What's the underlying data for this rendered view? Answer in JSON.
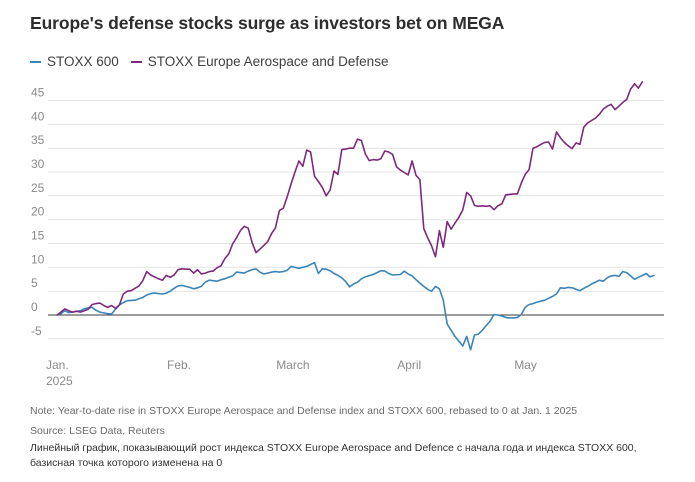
{
  "title": "Europe's defense stocks surge as investors bet on MEGA",
  "note": "Note: Year-to-date rise in STOXX Europe Aerospace and Defense index and STOXX 600, rebased to 0 at Jan. 1 2025",
  "source": "Source: LSEG Data, Reuters",
  "caption": "Линейный график, показывающий рост индекса STOXX Europe Aerospace and Defence с начала года и индекса STOXX 600, базисная точка которого изменена на 0",
  "colors": {
    "stoxx600": "#3a85b8",
    "aero_defense": "#7d2a7c",
    "grid": "#e4e4e4",
    "zero_line": "#3a3a3a",
    "tick_text": "#8a8a8a"
  },
  "chart_data": {
    "type": "line",
    "title": "Europe's defense stocks surge as investors bet on MEGA",
    "xlabel": "",
    "ylabel": "",
    "x_ticks": [
      {
        "label": "Jan.",
        "sub": "2025",
        "day": 1
      },
      {
        "label": "Feb.",
        "sub": "",
        "day": 32
      },
      {
        "label": "March",
        "sub": "",
        "day": 60
      },
      {
        "label": "April",
        "sub": "",
        "day": 91
      },
      {
        "label": "May",
        "sub": "",
        "day": 121
      }
    ],
    "y_ticks": [
      45,
      40,
      35,
      30,
      25,
      20,
      15,
      10,
      5,
      0,
      -5
    ],
    "ylim": [
      -8,
      49
    ],
    "xlim": [
      1,
      152
    ],
    "grid": true,
    "legend_position": "top-left",
    "series": [
      {
        "name": "STOXX 600",
        "key": "stoxx600",
        "points": [
          [
            1,
            0
          ],
          [
            2,
            0.3
          ],
          [
            3,
            0.9
          ],
          [
            4,
            0.5
          ],
          [
            5,
            0.6
          ],
          [
            7,
            0.9
          ],
          [
            8,
            1.3
          ],
          [
            9,
            1.5
          ],
          [
            10,
            1.6
          ],
          [
            11,
            1.0
          ],
          [
            12,
            0.6
          ],
          [
            14,
            0.3
          ],
          [
            15,
            0.2
          ],
          [
            16,
            1.2
          ],
          [
            17,
            2.1
          ],
          [
            18,
            2.6
          ],
          [
            19,
            3.0
          ],
          [
            21,
            3.1
          ],
          [
            22,
            3.4
          ],
          [
            23,
            3.7
          ],
          [
            24,
            4.2
          ],
          [
            25,
            4.5
          ],
          [
            26,
            4.6
          ],
          [
            28,
            4.4
          ],
          [
            29,
            4.6
          ],
          [
            30,
            5.0
          ],
          [
            31,
            5.6
          ],
          [
            32,
            6.1
          ],
          [
            33,
            6.2
          ],
          [
            35,
            5.8
          ],
          [
            36,
            5.5
          ],
          [
            37,
            5.7
          ],
          [
            38,
            6.0
          ],
          [
            39,
            6.9
          ],
          [
            40,
            7.3
          ],
          [
            42,
            7.1
          ],
          [
            43,
            7.4
          ],
          [
            44,
            7.6
          ],
          [
            45,
            7.9
          ],
          [
            46,
            8.2
          ],
          [
            47,
            9.0
          ],
          [
            49,
            8.8
          ],
          [
            50,
            9.2
          ],
          [
            51,
            9.5
          ],
          [
            52,
            9.7
          ],
          [
            53,
            9.0
          ],
          [
            54,
            8.6
          ],
          [
            56,
            9.0
          ],
          [
            57,
            9.1
          ],
          [
            58,
            9.0
          ],
          [
            59,
            9.1
          ],
          [
            60,
            9.4
          ],
          [
            61,
            10.2
          ],
          [
            63,
            9.8
          ],
          [
            64,
            10.0
          ],
          [
            65,
            10.2
          ],
          [
            66,
            10.6
          ],
          [
            67,
            11.0
          ],
          [
            68,
            8.7
          ],
          [
            69,
            9.7
          ],
          [
            70,
            9.6
          ],
          [
            71,
            9.3
          ],
          [
            72,
            8.7
          ],
          [
            73,
            8.3
          ],
          [
            74,
            7.8
          ],
          [
            75,
            7.0
          ],
          [
            76,
            5.9
          ],
          [
            77,
            6.5
          ],
          [
            78,
            6.9
          ],
          [
            79,
            7.6
          ],
          [
            80,
            8.0
          ],
          [
            82,
            8.5
          ],
          [
            83,
            8.9
          ],
          [
            84,
            9.3
          ],
          [
            85,
            9.2
          ],
          [
            86,
            8.7
          ],
          [
            87,
            8.4
          ],
          [
            89,
            8.5
          ],
          [
            90,
            9.2
          ],
          [
            91,
            8.6
          ],
          [
            92,
            8.2
          ],
          [
            93,
            7.4
          ],
          [
            94,
            6.7
          ],
          [
            95,
            6.0
          ],
          [
            96,
            5.4
          ],
          [
            97,
            5.0
          ],
          [
            98,
            6.0
          ],
          [
            99,
            5.5
          ],
          [
            100,
            3.1
          ],
          [
            101,
            -1.9
          ],
          [
            102,
            -3.2
          ],
          [
            103,
            -4.5
          ],
          [
            104,
            -5.5
          ],
          [
            105,
            -6.5
          ],
          [
            106,
            -4.5
          ],
          [
            107,
            -7.3
          ],
          [
            108,
            -4.2
          ],
          [
            109,
            -4.0
          ],
          [
            110,
            -3.2
          ],
          [
            111,
            -2.2
          ],
          [
            112,
            -1.3
          ],
          [
            113,
            0.1
          ],
          [
            114,
            0.0
          ],
          [
            115,
            -0.2
          ],
          [
            116,
            -0.5
          ],
          [
            117,
            -0.6
          ],
          [
            118,
            -0.6
          ],
          [
            119,
            -0.5
          ],
          [
            120,
            0.1
          ],
          [
            121,
            1.6
          ],
          [
            122,
            2.2
          ],
          [
            123,
            2.4
          ],
          [
            124,
            2.7
          ],
          [
            125,
            2.9
          ],
          [
            126,
            3.1
          ],
          [
            127,
            3.5
          ],
          [
            128,
            3.9
          ],
          [
            129,
            4.4
          ],
          [
            130,
            5.7
          ],
          [
            131,
            5.6
          ],
          [
            132,
            5.8
          ],
          [
            133,
            5.7
          ],
          [
            134,
            5.4
          ],
          [
            135,
            5.1
          ],
          [
            136,
            5.6
          ],
          [
            137,
            6.0
          ],
          [
            138,
            6.5
          ],
          [
            139,
            6.9
          ],
          [
            140,
            7.3
          ],
          [
            141,
            7.1
          ],
          [
            142,
            7.8
          ],
          [
            143,
            8.2
          ],
          [
            144,
            8.3
          ],
          [
            145,
            8.1
          ],
          [
            146,
            9.1
          ],
          [
            147,
            8.9
          ],
          [
            148,
            8.2
          ],
          [
            149,
            7.5
          ],
          [
            150,
            7.9
          ],
          [
            152,
            8.7
          ],
          [
            153,
            8.0
          ],
          [
            154,
            8.3
          ]
        ]
      },
      {
        "name": "STOXX Europe Aerospace and Defense",
        "key": "aero_defense",
        "points": [
          [
            1,
            0
          ],
          [
            2,
            0.6
          ],
          [
            3,
            1.3
          ],
          [
            4,
            0.9
          ],
          [
            5,
            0.6
          ],
          [
            6,
            0.8
          ],
          [
            7,
            0.6
          ],
          [
            8,
            0.9
          ],
          [
            9,
            1.2
          ],
          [
            10,
            2.2
          ],
          [
            11,
            2.4
          ],
          [
            12,
            2.5
          ],
          [
            13,
            2.0
          ],
          [
            14,
            1.6
          ],
          [
            15,
            2.0
          ],
          [
            16,
            1.4
          ],
          [
            17,
            2.1
          ],
          [
            18,
            4.4
          ],
          [
            19,
            5.0
          ],
          [
            20,
            5.1
          ],
          [
            21,
            5.6
          ],
          [
            22,
            6.1
          ],
          [
            23,
            7.2
          ],
          [
            24,
            9.1
          ],
          [
            25,
            8.4
          ],
          [
            26,
            8.0
          ],
          [
            27,
            7.6
          ],
          [
            28,
            7.3
          ],
          [
            29,
            8.3
          ],
          [
            30,
            7.9
          ],
          [
            31,
            8.4
          ],
          [
            32,
            9.5
          ],
          [
            33,
            9.7
          ],
          [
            34,
            9.6
          ],
          [
            35,
            9.6
          ],
          [
            36,
            8.8
          ],
          [
            37,
            9.5
          ],
          [
            38,
            8.6
          ],
          [
            39,
            8.8
          ],
          [
            40,
            9.1
          ],
          [
            41,
            9.2
          ],
          [
            42,
            9.9
          ],
          [
            43,
            10.3
          ],
          [
            44,
            11.8
          ],
          [
            45,
            12.8
          ],
          [
            46,
            14.9
          ],
          [
            47,
            16.2
          ],
          [
            48,
            17.7
          ],
          [
            49,
            18.6
          ],
          [
            50,
            18.2
          ],
          [
            51,
            15.2
          ],
          [
            52,
            13.1
          ],
          [
            53,
            13.8
          ],
          [
            54,
            14.6
          ],
          [
            55,
            15.4
          ],
          [
            56,
            17.1
          ],
          [
            57,
            18.3
          ],
          [
            58,
            21.9
          ],
          [
            59,
            22.4
          ],
          [
            60,
            24.8
          ],
          [
            61,
            27.5
          ],
          [
            62,
            30.0
          ],
          [
            63,
            32.3
          ],
          [
            64,
            31.2
          ],
          [
            65,
            34.6
          ],
          [
            66,
            34.2
          ],
          [
            67,
            29.1
          ],
          [
            68,
            28.0
          ],
          [
            69,
            26.8
          ],
          [
            70,
            25.0
          ],
          [
            71,
            26.2
          ],
          [
            72,
            30.2
          ],
          [
            73,
            29.5
          ],
          [
            74,
            34.7
          ],
          [
            75,
            34.8
          ],
          [
            76,
            35.0
          ],
          [
            77,
            35.0
          ],
          [
            78,
            36.9
          ],
          [
            79,
            36.6
          ],
          [
            80,
            33.8
          ],
          [
            81,
            32.4
          ],
          [
            82,
            32.6
          ],
          [
            83,
            32.5
          ],
          [
            84,
            32.8
          ],
          [
            85,
            34.4
          ],
          [
            86,
            34.2
          ],
          [
            87,
            33.7
          ],
          [
            88,
            31.1
          ],
          [
            89,
            30.4
          ],
          [
            90,
            29.9
          ],
          [
            91,
            29.4
          ],
          [
            92,
            32.3
          ],
          [
            93,
            29.3
          ],
          [
            94,
            28.4
          ],
          [
            95,
            18.1
          ],
          [
            96,
            16.2
          ],
          [
            97,
            14.5
          ],
          [
            98,
            12.2
          ],
          [
            99,
            17.7
          ],
          [
            100,
            14.2
          ],
          [
            101,
            19.6
          ],
          [
            102,
            18.0
          ],
          [
            103,
            19.3
          ],
          [
            104,
            20.5
          ],
          [
            105,
            22.1
          ],
          [
            106,
            25.7
          ],
          [
            107,
            25.0
          ],
          [
            108,
            23.0
          ],
          [
            109,
            22.8
          ],
          [
            110,
            22.9
          ],
          [
            111,
            22.8
          ],
          [
            112,
            22.9
          ],
          [
            113,
            22.1
          ],
          [
            114,
            22.9
          ],
          [
            115,
            23.3
          ],
          [
            116,
            25.2
          ],
          [
            117,
            25.3
          ],
          [
            118,
            25.4
          ],
          [
            119,
            25.4
          ],
          [
            120,
            27.7
          ],
          [
            121,
            29.5
          ],
          [
            122,
            30.5
          ],
          [
            123,
            35.0
          ],
          [
            124,
            35.3
          ],
          [
            125,
            35.8
          ],
          [
            126,
            36.2
          ],
          [
            127,
            36.3
          ],
          [
            128,
            34.8
          ],
          [
            129,
            38.4
          ],
          [
            130,
            37.2
          ],
          [
            131,
            36.2
          ],
          [
            132,
            35.5
          ],
          [
            133,
            34.9
          ],
          [
            134,
            36.1
          ],
          [
            135,
            35.8
          ],
          [
            136,
            39.4
          ],
          [
            137,
            40.3
          ],
          [
            138,
            40.8
          ],
          [
            139,
            41.3
          ],
          [
            140,
            42.1
          ],
          [
            141,
            43.2
          ],
          [
            142,
            43.8
          ],
          [
            143,
            44.2
          ],
          [
            144,
            43.1
          ],
          [
            145,
            43.8
          ],
          [
            146,
            44.6
          ],
          [
            147,
            45.2
          ],
          [
            148,
            47.4
          ],
          [
            149,
            48.5
          ],
          [
            150,
            47.6
          ],
          [
            151,
            48.9
          ]
        ]
      }
    ]
  }
}
